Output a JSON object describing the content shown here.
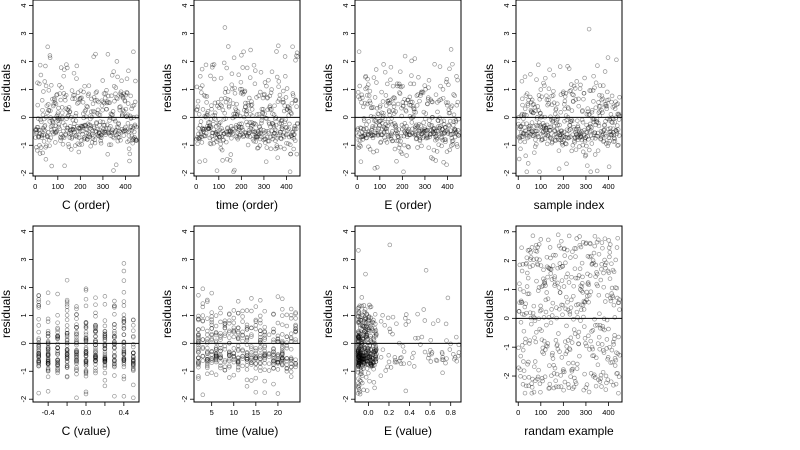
{
  "chart_data": [
    {
      "type": "scatter",
      "xlabel": "C (order)",
      "ylabel": "residuals",
      "xlim": [
        -10,
        460
      ],
      "ylim": [
        -2.1,
        4.2
      ],
      "xticks": [
        0,
        100,
        200,
        300,
        400
      ],
      "xtick_labels": [
        "0",
        "100",
        "200",
        "300",
        "400"
      ],
      "yticks": [
        -2,
        -1,
        0,
        1,
        2,
        3,
        4
      ],
      "ytick_labels": [
        "-2",
        "-1",
        "0",
        "1",
        "2",
        "3",
        "4"
      ],
      "hline": 0,
      "generator": {
        "kind": "order",
        "n": 450,
        "seed": 11
      }
    },
    {
      "type": "scatter",
      "xlabel": "time (order)",
      "ylabel": "residuals",
      "xlim": [
        -10,
        460
      ],
      "ylim": [
        -2.1,
        4.2
      ],
      "xticks": [
        0,
        100,
        200,
        300,
        400
      ],
      "xtick_labels": [
        "0",
        "100",
        "200",
        "300",
        "400"
      ],
      "yticks": [
        -2,
        -1,
        0,
        1,
        2,
        3,
        4
      ],
      "ytick_labels": [
        "-2",
        "-1",
        "0",
        "1",
        "2",
        "3",
        "4"
      ],
      "hline": 0,
      "generator": {
        "kind": "order",
        "n": 450,
        "seed": 23
      }
    },
    {
      "type": "scatter",
      "xlabel": "E (order)",
      "ylabel": "residuals",
      "xlim": [
        -10,
        460
      ],
      "ylim": [
        -2.1,
        4.2
      ],
      "xticks": [
        0,
        100,
        200,
        300,
        400
      ],
      "xtick_labels": [
        "0",
        "100",
        "200",
        "300",
        "400"
      ],
      "yticks": [
        -2,
        -1,
        0,
        1,
        2,
        3,
        4
      ],
      "ytick_labels": [
        "-2",
        "-1",
        "0",
        "1",
        "2",
        "3",
        "4"
      ],
      "hline": 0,
      "generator": {
        "kind": "order",
        "n": 450,
        "seed": 37
      }
    },
    {
      "type": "scatter",
      "xlabel": "sample index",
      "ylabel": "residuals",
      "xlim": [
        -10,
        460
      ],
      "ylim": [
        -2.1,
        4.2
      ],
      "xticks": [
        0,
        100,
        200,
        300,
        400
      ],
      "xtick_labels": [
        "0",
        "100",
        "200",
        "300",
        "400"
      ],
      "yticks": [
        -2,
        -1,
        0,
        1,
        2,
        3,
        4
      ],
      "ytick_labels": [
        "-2",
        "-1",
        "0",
        "1",
        "2",
        "3",
        "4"
      ],
      "hline": 0,
      "generator": {
        "kind": "order",
        "n": 450,
        "seed": 53
      }
    },
    {
      "type": "scatter",
      "xlabel": "C (value)",
      "ylabel": "residuals",
      "xlim": [
        -0.56,
        0.56
      ],
      "ylim": [
        -2.1,
        4.2
      ],
      "xticks": [
        -0.4,
        0,
        0.4
      ],
      "xtick_labels": [
        "-0.4",
        "0.0",
        "0.4"
      ],
      "minor_xticks": [
        -0.2,
        0.2
      ],
      "yticks": [
        -2,
        -1,
        0,
        1,
        2,
        3,
        4
      ],
      "ytick_labels": [
        "-2",
        "-1",
        "0",
        "1",
        "2",
        "3",
        "4"
      ],
      "hline": 0,
      "generator": {
        "kind": "levels",
        "levels": [
          -0.5,
          -0.4,
          -0.3,
          -0.2,
          -0.1,
          0,
          0.1,
          0.2,
          0.3,
          0.4,
          0.5
        ],
        "n": 440,
        "seed": 71
      }
    },
    {
      "type": "scatter",
      "xlabel": "time (value)",
      "ylabel": "residuals",
      "xlim": [
        1,
        25
      ],
      "ylim": [
        -2.1,
        4.2
      ],
      "xticks": [
        5,
        10,
        15,
        20
      ],
      "xtick_labels": [
        "5",
        "10",
        "15",
        "20"
      ],
      "yticks": [
        -2,
        -1,
        0,
        1,
        2,
        3,
        4
      ],
      "ytick_labels": [
        "-2",
        "-1",
        "0",
        "1",
        "2",
        "3",
        "4"
      ],
      "hline": 0,
      "generator": {
        "kind": "levels",
        "levels": [
          2,
          3,
          4,
          5,
          6,
          7,
          8,
          9,
          10,
          11,
          12,
          13,
          14,
          15,
          16,
          17,
          18,
          19,
          20,
          21,
          22,
          23,
          24
        ],
        "n": 440,
        "seed": 89
      }
    },
    {
      "type": "scatter",
      "xlabel": "E (value)",
      "ylabel": "residuals",
      "xlim": [
        -0.13,
        0.9
      ],
      "ylim": [
        -2.1,
        4.2
      ],
      "xticks": [
        0,
        0.2,
        0.4,
        0.6,
        0.8
      ],
      "xtick_labels": [
        "0.0",
        "0.2",
        "0.4",
        "0.6",
        "0.8"
      ],
      "yticks": [
        -2,
        -1,
        0,
        1,
        2,
        3,
        4
      ],
      "ytick_labels": [
        "-2",
        "-1",
        "0",
        "1",
        "2",
        "3",
        "4"
      ],
      "hline": 0,
      "generator": {
        "kind": "skewed",
        "n": 440,
        "seed": 97
      }
    },
    {
      "type": "scatter",
      "xlabel": "randam example",
      "ylabel": "residuals",
      "xlim": [
        -10,
        460
      ],
      "ylim": [
        -2.9,
        3.2
      ],
      "xticks": [
        0,
        100,
        200,
        300,
        400
      ],
      "xtick_labels": [
        "0",
        "100",
        "200",
        "300",
        "400"
      ],
      "yticks": [
        -2,
        -1,
        0,
        1,
        2,
        3
      ],
      "ytick_labels": [
        "-2",
        "-1",
        "0",
        "1",
        "2",
        "3"
      ],
      "hline": 0,
      "generator": {
        "kind": "uniform",
        "n": 450,
        "seed": 131
      }
    }
  ]
}
